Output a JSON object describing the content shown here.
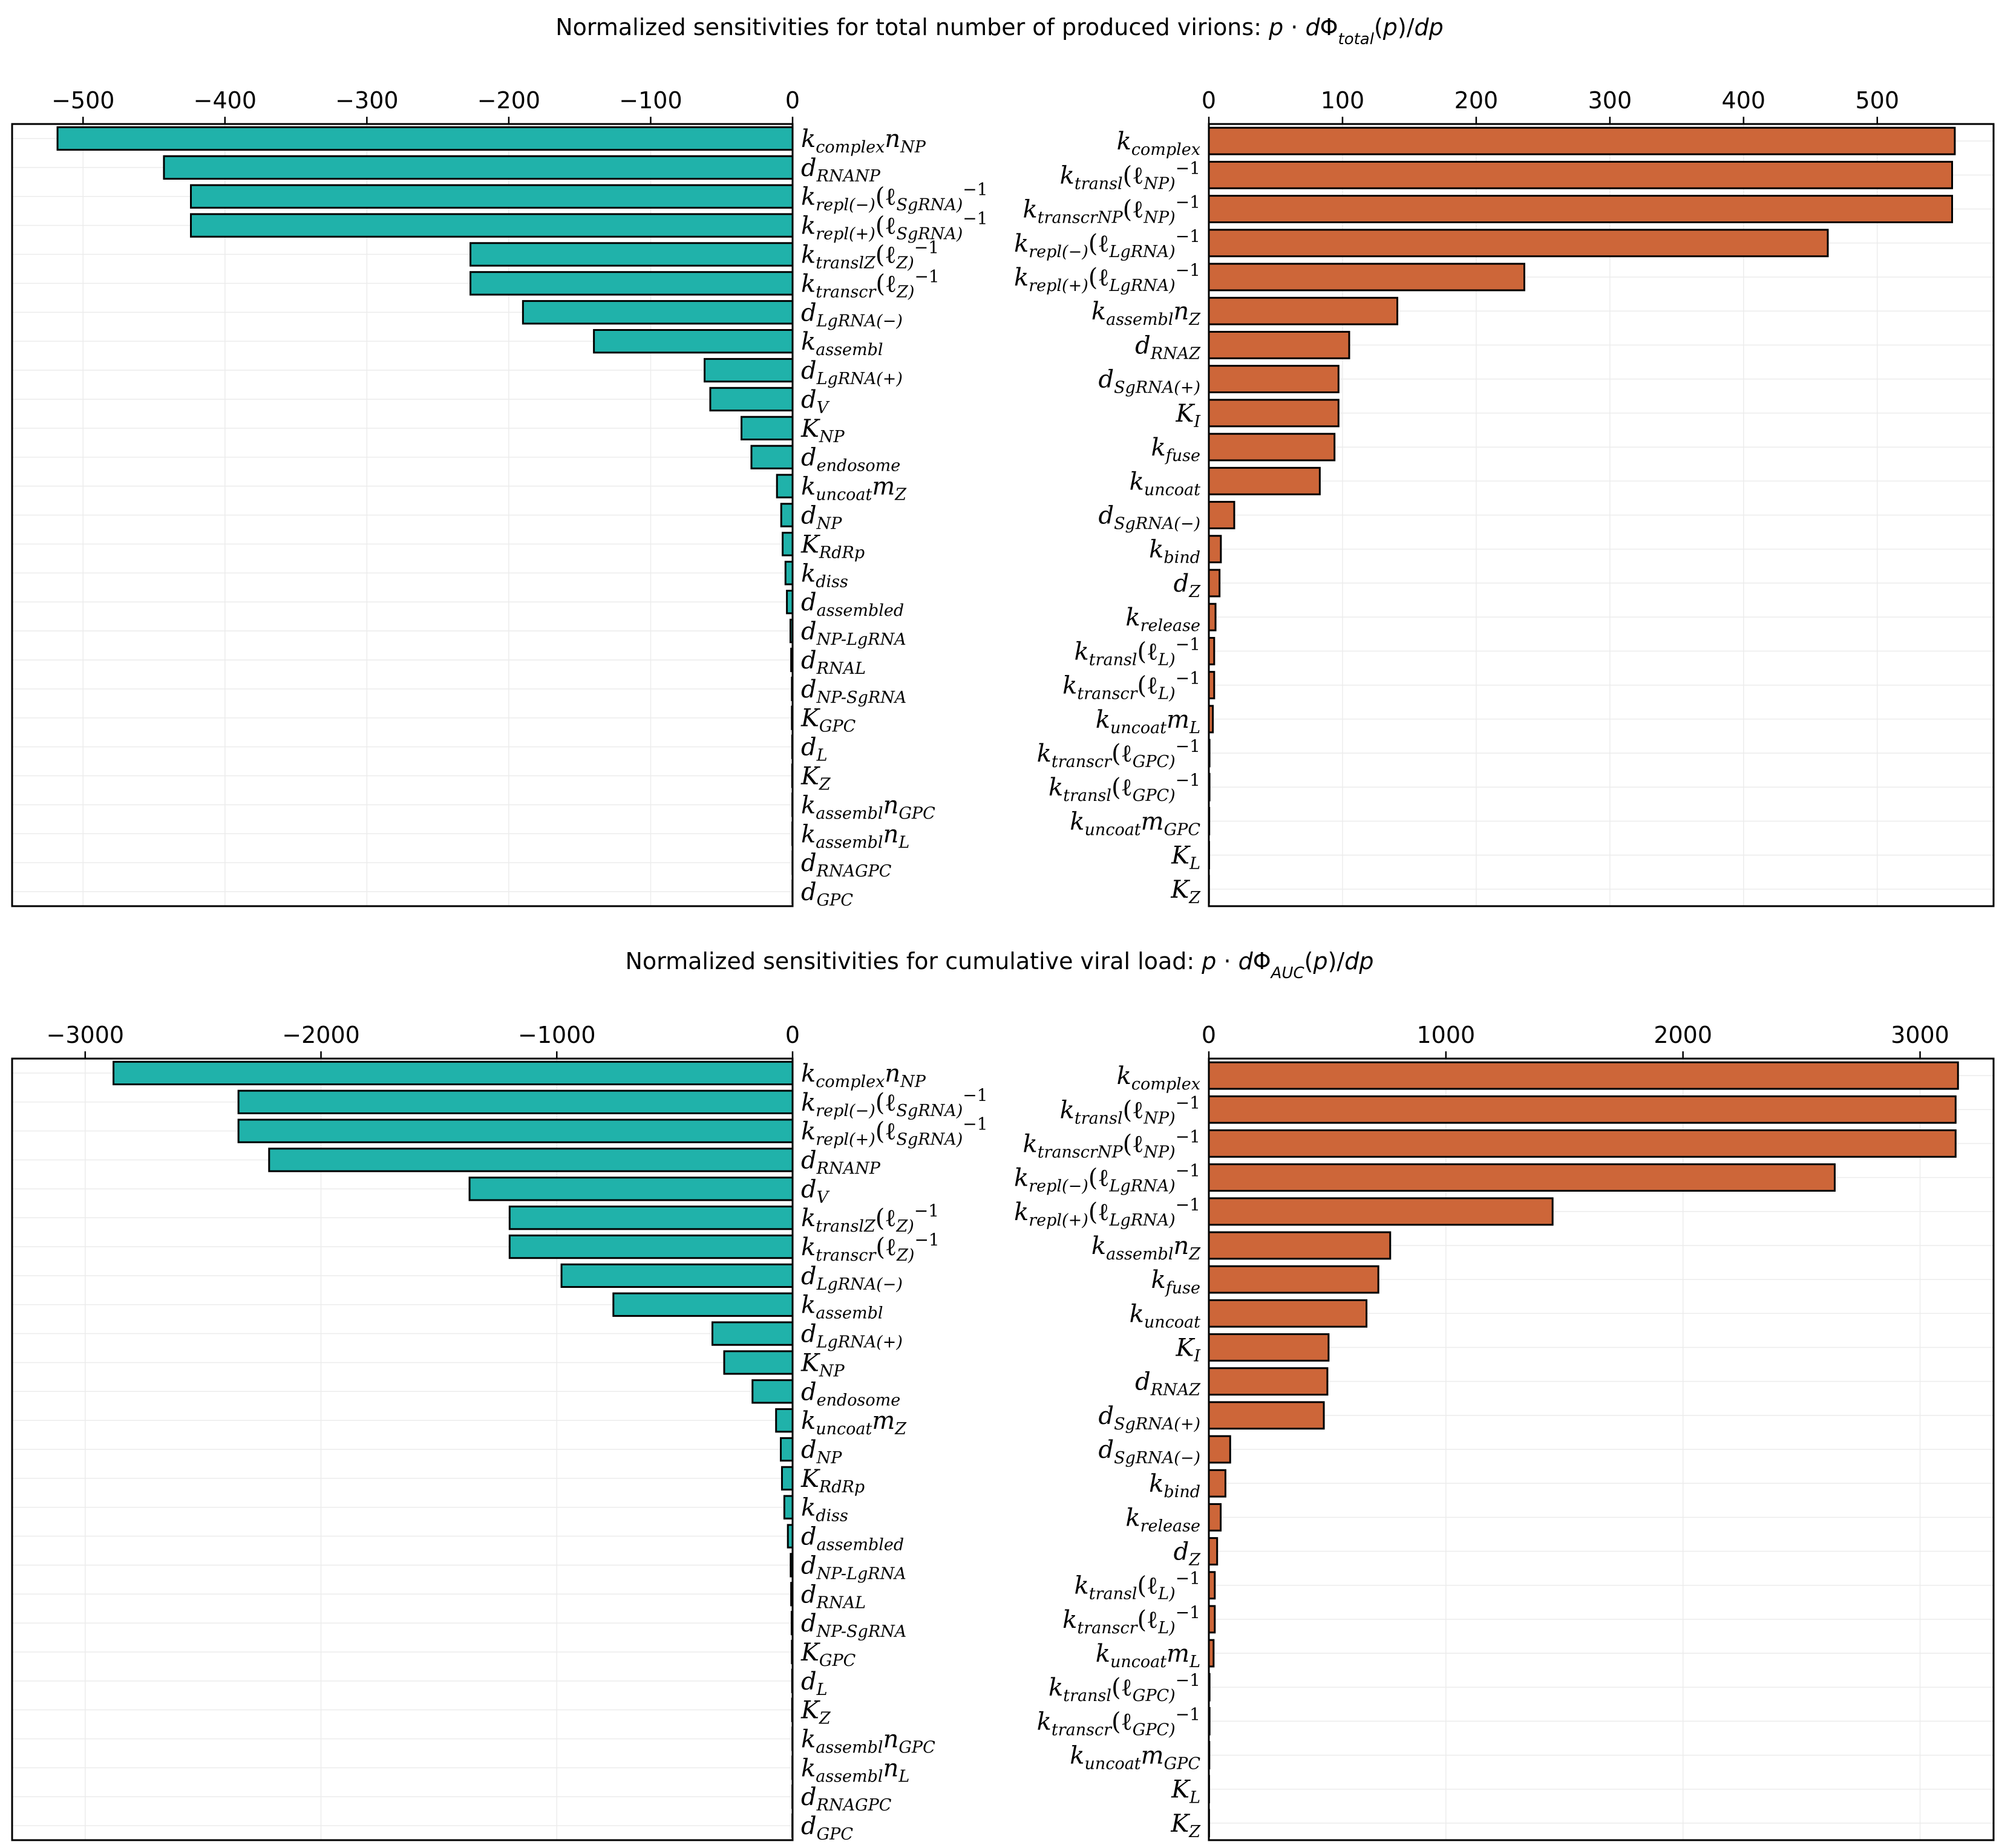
{
  "colors": {
    "negative_bar": "#20b2aa",
    "positive_bar": "#cd6639",
    "edge": "#000000",
    "grid": "#ececec"
  },
  "chart_data": [
    {
      "title": "Normalized sensitivities for total number of produced virions:  p · dΦ_total(p)/dp",
      "panels": [
        {
          "type": "bar",
          "orientation": "horizontal",
          "side": "negative",
          "xlim": [
            -550,
            0
          ],
          "xticks": [
            -500,
            -400,
            -300,
            -200,
            -100,
            0
          ],
          "xtick_labels": [
            "−500",
            "−400",
            "−300",
            "−200",
            "−100",
            "0"
          ],
          "categories": [
            "k_complex n_NP",
            "d_RNA_NP",
            "k_repl(−) (ℓ_SgRNA)^−1",
            "k_repl(+) (ℓ_SgRNA)^−1",
            "k_transl_Z (ℓ_Z)^−1",
            "k_transcr (ℓ_Z)^−1",
            "d_LgRNA(−)",
            "k_assembl",
            "d_LgRNA(+)",
            "d_V",
            "K_NP",
            "d_endosome",
            "k_uncoat m_Z",
            "d_NP",
            "K_RdRp",
            "k_diss",
            "d_assembled",
            "d_NP-LgRNA",
            "d_RNA_L",
            "d_NP-SgRNA",
            "K_GPC",
            "d_L",
            "K_Z",
            "k_assembl n_GPC",
            "k_assembl n_L",
            "d_RNA_GPC",
            "d_GPC"
          ],
          "values": [
            -518,
            -443,
            -424,
            -424,
            -227,
            -227,
            -190,
            -140,
            -62,
            -58,
            -36,
            -29,
            -11,
            -8,
            -7,
            -5,
            -4,
            -1.5,
            -1,
            -0.5,
            -0.5,
            -0.3,
            -0.3,
            -0.2,
            -0.2,
            -0.1,
            -0.1
          ]
        },
        {
          "type": "bar",
          "orientation": "horizontal",
          "side": "positive",
          "xlim": [
            0,
            587
          ],
          "xticks": [
            0,
            100,
            200,
            300,
            400,
            500
          ],
          "xtick_labels": [
            "0",
            "100",
            "200",
            "300",
            "400",
            "500"
          ],
          "categories": [
            "k_complex",
            "k_transl (ℓ_NP)^−1",
            "k_transcr_NP (ℓ_NP)^−1",
            "k_repl(−) (ℓ_LgRNA)^−1",
            "k_repl(+) (ℓ_LgRNA)^−1",
            "k_assembl n_Z",
            "d_RNA_Z",
            "d_SgRNA(+)",
            "K_I",
            "k_fuse",
            "k_uncoat",
            "d_SgRNA(−)",
            "k_bind",
            "d_Z",
            "k_release",
            "k_transl (ℓ_L)^−1",
            "k_transcr (ℓ_L)^−1",
            "k_uncoat m_L",
            "k_transcr (ℓ_GPC)^−1",
            "k_transl (ℓ_GPC)^−1",
            "k_uncoat m_GPC",
            "K_L",
            "K_Z"
          ],
          "values": [
            558,
            556,
            556,
            463,
            236,
            141,
            105,
            97,
            97,
            94,
            83,
            19,
            9,
            8,
            5,
            4,
            4,
            3,
            0.5,
            0.5,
            0.3,
            0.2,
            0.1
          ]
        }
      ]
    },
    {
      "title": "Normalized sensitivities for cumulative viral load:  p · dΦ_AUC(p)/dp",
      "panels": [
        {
          "type": "bar",
          "orientation": "horizontal",
          "side": "negative",
          "xlim": [
            -3310,
            0
          ],
          "xticks": [
            -3000,
            -2000,
            -1000,
            0
          ],
          "xtick_labels": [
            "−3000",
            "−2000",
            "−1000",
            "0"
          ],
          "categories": [
            "k_complex n_NP",
            "k_repl(−) (ℓ_SgRNA)^−1",
            "k_repl(+) (ℓ_SgRNA)^−1",
            "d_RNA_NP",
            "d_V",
            "k_transl_Z (ℓ_Z)^−1",
            "k_transcr (ℓ_Z)^−1",
            "d_LgRNA(−)",
            "k_assembl",
            "d_LgRNA(+)",
            "K_NP",
            "d_endosome",
            "k_uncoat m_Z",
            "d_NP",
            "K_RdRp",
            "k_diss",
            "d_assembled",
            "d_NP-LgRNA",
            "d_RNA_L",
            "d_NP-SgRNA",
            "K_GPC",
            "d_L",
            "K_Z",
            "k_assembl n_GPC",
            "k_assembl n_L",
            "d_RNA_GPC",
            "d_GPC"
          ],
          "values": [
            -2880,
            -2350,
            -2350,
            -2220,
            -1370,
            -1200,
            -1200,
            -980,
            -760,
            -340,
            -290,
            -170,
            -70,
            -50,
            -45,
            -35,
            -20,
            -8,
            -6,
            -4,
            -3,
            -2,
            -2,
            -1,
            -1,
            -1,
            -1
          ]
        },
        {
          "type": "bar",
          "orientation": "horizontal",
          "side": "positive",
          "xlim": [
            0,
            3310
          ],
          "xticks": [
            0,
            1000,
            2000,
            3000
          ],
          "xtick_labels": [
            "0",
            "1000",
            "2000",
            "3000"
          ],
          "categories": [
            "k_complex",
            "k_transl (ℓ_NP)^−1",
            "k_transcr_NP (ℓ_NP)^−1",
            "k_repl(−) (ℓ_LgRNA)^−1",
            "k_repl(+) (ℓ_LgRNA)^−1",
            "k_assembl n_Z",
            "k_fuse",
            "k_uncoat",
            "K_I",
            "d_RNA_Z",
            "d_SgRNA(+)",
            "d_SgRNA(−)",
            "k_bind",
            "k_release",
            "d_Z",
            "k_transl (ℓ_L)^−1",
            "k_transcr (ℓ_L)^−1",
            "k_uncoat m_L",
            "k_transl (ℓ_GPC)^−1",
            "k_transcr (ℓ_GPC)^−1",
            "k_uncoat m_GPC",
            "K_L",
            "K_Z"
          ],
          "values": [
            3160,
            3150,
            3150,
            2640,
            1450,
            765,
            715,
            665,
            505,
            500,
            485,
            90,
            70,
            50,
            35,
            25,
            25,
            20,
            3,
            3,
            2,
            1,
            1
          ]
        }
      ]
    }
  ]
}
